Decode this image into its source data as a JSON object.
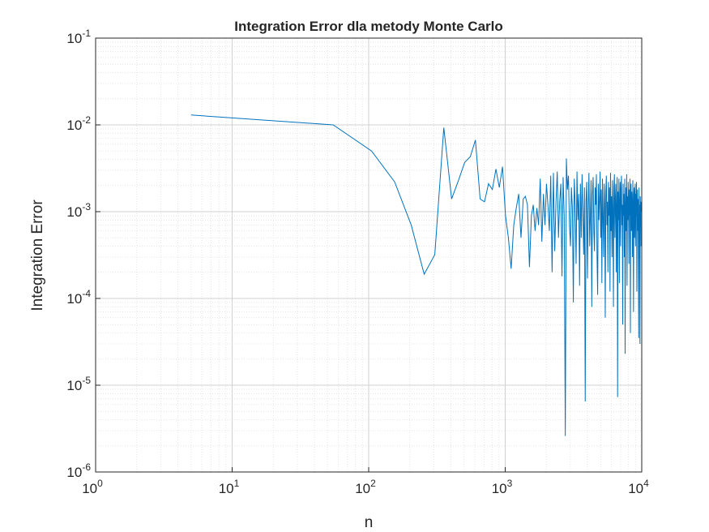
{
  "chart_data": {
    "type": "line",
    "title": "Integration Error dla metody Monte Carlo",
    "x_label": "n",
    "y_label": "Integration Error",
    "x_scale": "log",
    "y_scale": "log",
    "grid": true,
    "minor_grid": true,
    "color": "#0072bd",
    "xlim": [
      1,
      10000
    ],
    "ylim": [
      1e-06,
      0.1
    ],
    "xticks": [
      {
        "value": 1,
        "label": "10^0"
      },
      {
        "value": 10,
        "label": "10^1"
      },
      {
        "value": 100,
        "label": "10^2"
      },
      {
        "value": 1000,
        "label": "10^3"
      },
      {
        "value": 10000,
        "label": "10^4"
      }
    ],
    "yticks": [
      {
        "value": 1e-06,
        "label": "10^-6"
      },
      {
        "value": 1e-05,
        "label": "10^-5"
      },
      {
        "value": 0.0001,
        "label": "10^-4"
      },
      {
        "value": 0.001,
        "label": "10^-3"
      },
      {
        "value": 0.01,
        "label": "10^-2"
      },
      {
        "value": 0.1,
        "label": "10^-1"
      }
    ],
    "x": [
      5,
      55,
      105,
      155,
      205,
      255,
      305,
      355,
      405,
      455,
      505,
      555,
      605,
      655,
      705,
      755,
      805,
      855,
      905,
      955,
      1005,
      1055,
      1105,
      1155,
      1205,
      1255,
      1305,
      1355,
      1405,
      1455,
      1505,
      1555,
      1605,
      1655,
      1705,
      1755,
      1805,
      1855,
      1905,
      1955,
      2005,
      2055,
      2105,
      2155,
      2205,
      2255,
      2305,
      2355,
      2405,
      2455,
      2505,
      2555,
      2605,
      2655,
      2705,
      2755,
      2805,
      2855,
      2905,
      2955,
      3005,
      3055,
      3105,
      3155,
      3205,
      3255,
      3305,
      3355,
      3405,
      3455,
      3505,
      3555,
      3605,
      3655,
      3705,
      3755,
      3805,
      3855,
      3905,
      3955,
      4005,
      4055,
      4105,
      4155,
      4205,
      4255,
      4305,
      4355,
      4405,
      4455,
      4505,
      4555,
      4605,
      4655,
      4705,
      4755,
      4805,
      4855,
      4905,
      4955,
      5005,
      5055,
      5105,
      5155,
      5205,
      5255,
      5305,
      5355,
      5405,
      5455,
      5505,
      5555,
      5605,
      5655,
      5705,
      5755,
      5805,
      5855,
      5905,
      5955,
      6005,
      6055,
      6105,
      6155,
      6205,
      6255,
      6305,
      6355,
      6405,
      6455,
      6505,
      6555,
      6605,
      6655,
      6705,
      6755,
      6805,
      6855,
      6905,
      6955,
      7005,
      7055,
      7105,
      7155,
      7205,
      7255,
      7305,
      7355,
      7405,
      7455,
      7505,
      7555,
      7605,
      7655,
      7705,
      7755,
      7805,
      7855,
      7905,
      7955,
      8005,
      8055,
      8105,
      8155,
      8205,
      8255,
      8305,
      8355,
      8405,
      8455,
      8505,
      8555,
      8605,
      8655,
      8705,
      8755,
      8805,
      8855,
      8905,
      8955,
      9005,
      9055,
      9105,
      9155,
      9205,
      9255,
      9305,
      9355,
      9405,
      9455,
      9505,
      9555,
      9605,
      9655,
      9705,
      9755,
      9805,
      9855,
      9905,
      9955
    ],
    "values": [
      0.013,
      0.01,
      0.005,
      0.0022,
      0.0007,
      0.00019,
      0.00032,
      0.0093,
      0.0014,
      0.0023,
      0.0037,
      0.0043,
      0.0067,
      0.0014,
      0.0013,
      0.0021,
      0.0018,
      0.0031,
      0.0019,
      0.0033,
      0.0009,
      0.0005,
      0.00022,
      0.0007,
      0.0011,
      0.0016,
      0.0005,
      0.0014,
      0.0015,
      0.0012,
      0.00023,
      0.0009,
      0.0012,
      0.0006,
      0.0011,
      0.0007,
      0.0024,
      0.00045,
      0.0016,
      0.0007,
      0.0021,
      0.0012,
      0.0006,
      0.0026,
      0.0002,
      0.0028,
      0.00035,
      0.0013,
      0.0029,
      0.0005,
      0.0013,
      0.0021,
      0.00018,
      0.0025,
      0.0009,
      2.6e-06,
      0.0041,
      0.0018,
      0.0026,
      0.0007,
      0.0004,
      0.0019,
      0.0011,
      9e-05,
      0.0024,
      0.0012,
      0.00025,
      0.0029,
      0.0008,
      0.0016,
      0.00014,
      0.0021,
      0.0005,
      0.0027,
      0.001,
      0.00032,
      0.0019,
      6.5e-06,
      0.0013,
      0.0022,
      0.00017,
      0.0011,
      0.0028,
      0.0004,
      0.0009,
      0.0023,
      8e-05,
      0.0016,
      0.0025,
      0.0006,
      0.00035,
      0.0019,
      0.0012,
      0.0027,
      0.0003,
      0.00011,
      0.0021,
      0.0008,
      0.0014,
      0.0029,
      0.0005,
      0.0018,
      0.00015,
      0.0024,
      0.0009,
      0.0003,
      0.0021,
      0.0012,
      6e-05,
      0.0017,
      0.0026,
      0.0007,
      0.0013,
      0.0002,
      0.0022,
      0.0009,
      0.0019,
      0.00012,
      0.0028,
      0.0006,
      0.0015,
      0.0003,
      0.0023,
      0.0011,
      8e-05,
      0.0019,
      0.0027,
      0.0005,
      0.0014,
      0.0021,
      0.0002,
      0.0012,
      0.0025,
      7.3e-06,
      0.0017,
      0.0008,
      0.0024,
      0.00015,
      0.0013,
      0.0022,
      0.0004,
      0.0018,
      0.0026,
      0.0007,
      0.0012,
      5e-05,
      0.0021,
      0.0009,
      0.0016,
      0.0003,
      0.0024,
      2.3e-05,
      0.0011,
      0.0019,
      0.0006,
      0.0027,
      0.00014,
      0.0015,
      0.0008,
      0.0022,
      0.0012,
      0.00025,
      0.0018,
      0.0009,
      0.0024,
      4e-05,
      0.0014,
      0.0021,
      0.0006,
      0.0017,
      0.0011,
      0.0003,
      0.0023,
      0.0008,
      7e-05,
      0.0016,
      0.0019,
      0.0005,
      0.0013,
      0.0021,
      0.0004,
      0.0016,
      0.0009,
      0.0022,
      0.00012,
      0.0011,
      0.0018,
      0.0006,
      0.0014,
      0.0002,
      3.5e-05,
      0.0019,
      0.0007,
      0.0012,
      3e-05,
      0.0015,
      0.0009,
      0.0013,
      0.0004,
      0.001
    ]
  }
}
